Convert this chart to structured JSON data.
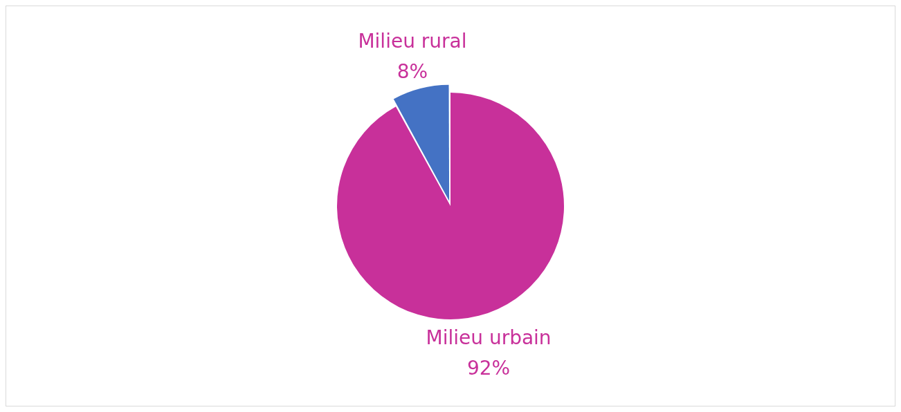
{
  "chart_data": {
    "type": "pie",
    "categories": [
      "Milieu rural",
      "Milieu urbain"
    ],
    "values": [
      8,
      92
    ],
    "colors": [
      "#4472c4",
      "#c8309a"
    ],
    "value_labels": [
      "8%",
      "92%"
    ]
  }
}
